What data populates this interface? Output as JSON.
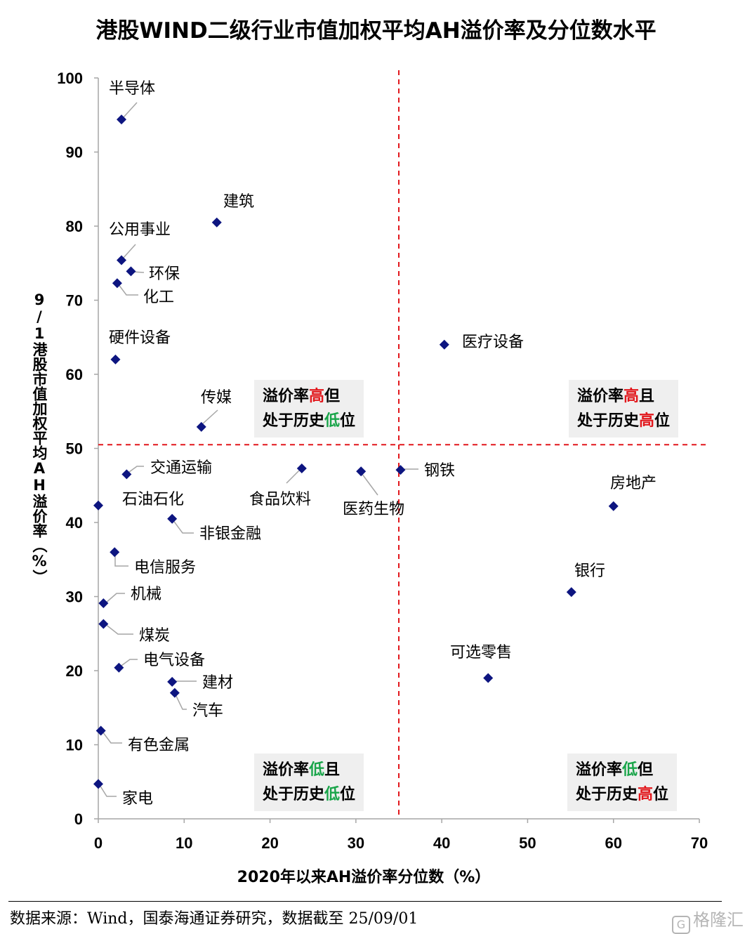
{
  "chart_data": {
    "type": "scatter",
    "title": "港股WIND二级行业市值加权平均AH溢价率及分位数水平",
    "xlabel": "2020年以来AH溢价率分位数（%）",
    "ylabel": "9/1港股市值加权平均AH溢价率（%）",
    "xlim": [
      0,
      70
    ],
    "ylim": [
      0,
      100
    ],
    "xticks": [
      "0",
      "10",
      "20",
      "30",
      "40",
      "50",
      "60",
      "70"
    ],
    "yticks": [
      "0",
      "10",
      "20",
      "30",
      "40",
      "50",
      "60",
      "70",
      "80",
      "90",
      "100"
    ],
    "grid": false,
    "marker_color": "#0d1580",
    "reference_lines": {
      "x": 35,
      "y": 50.5,
      "color": "#e2171c",
      "style": "dashed"
    },
    "points": [
      {
        "label": "半导体",
        "x": 2.7,
        "y": 94.4
      },
      {
        "label": "建筑",
        "x": 13.8,
        "y": 80.5
      },
      {
        "label": "公用事业",
        "x": 2.7,
        "y": 75.4
      },
      {
        "label": "环保",
        "x": 3.8,
        "y": 73.9
      },
      {
        "label": "化工",
        "x": 2.2,
        "y": 72.3
      },
      {
        "label": "硬件设备",
        "x": 2.0,
        "y": 62.0
      },
      {
        "label": "医疗设备",
        "x": 40.3,
        "y": 64.0
      },
      {
        "label": "传媒",
        "x": 12.0,
        "y": 52.9
      },
      {
        "label": "交通运输",
        "x": 3.3,
        "y": 46.5
      },
      {
        "label": "食品饮料",
        "x": 23.7,
        "y": 47.3
      },
      {
        "label": "医药生物",
        "x": 30.6,
        "y": 46.9
      },
      {
        "label": "钢铁",
        "x": 35.2,
        "y": 47.1
      },
      {
        "label": "石油石化",
        "x": 0.0,
        "y": 42.3
      },
      {
        "label": "非银金融",
        "x": 8.6,
        "y": 40.5
      },
      {
        "label": "房地产",
        "x": 60.0,
        "y": 42.2
      },
      {
        "label": "电信服务",
        "x": 1.9,
        "y": 36.0
      },
      {
        "label": "银行",
        "x": 55.1,
        "y": 30.6
      },
      {
        "label": "机械",
        "x": 0.6,
        "y": 29.1
      },
      {
        "label": "煤炭",
        "x": 0.6,
        "y": 26.3
      },
      {
        "label": "电气设备",
        "x": 2.4,
        "y": 20.4
      },
      {
        "label": "建材",
        "x": 8.6,
        "y": 18.5
      },
      {
        "label": "汽车",
        "x": 8.9,
        "y": 17.0
      },
      {
        "label": "可选零售",
        "x": 45.4,
        "y": 19.0
      },
      {
        "label": "有色金属",
        "x": 0.3,
        "y": 11.9
      },
      {
        "label": "家电",
        "x": 0.0,
        "y": 4.7
      }
    ]
  },
  "quadrants": {
    "top_left": {
      "l1a": "溢价率",
      "l1b": "高",
      "l1c": "但",
      "l2a": "处于历史",
      "l2b": "低",
      "l2c": "位"
    },
    "top_right": {
      "l1a": "溢价率",
      "l1b": "高",
      "l1c": "且",
      "l2a": "处于历史",
      "l2b": "高",
      "l2c": "位"
    },
    "bottom_left": {
      "l1a": "溢价率",
      "l1b": "低",
      "l1c": "且",
      "l2a": "处于历史",
      "l2b": "低",
      "l2c": "位"
    },
    "bottom_right": {
      "l1a": "溢价率",
      "l1b": "低",
      "l1c": "但",
      "l2a": "处于历史",
      "l2b": "高",
      "l2c": "位"
    }
  },
  "footer": {
    "source": "数据来源：Wind，国泰海通证券研究，数据截至 25/09/01"
  },
  "watermark": {
    "text": "格隆汇",
    "icon": "g-logo-icon"
  }
}
